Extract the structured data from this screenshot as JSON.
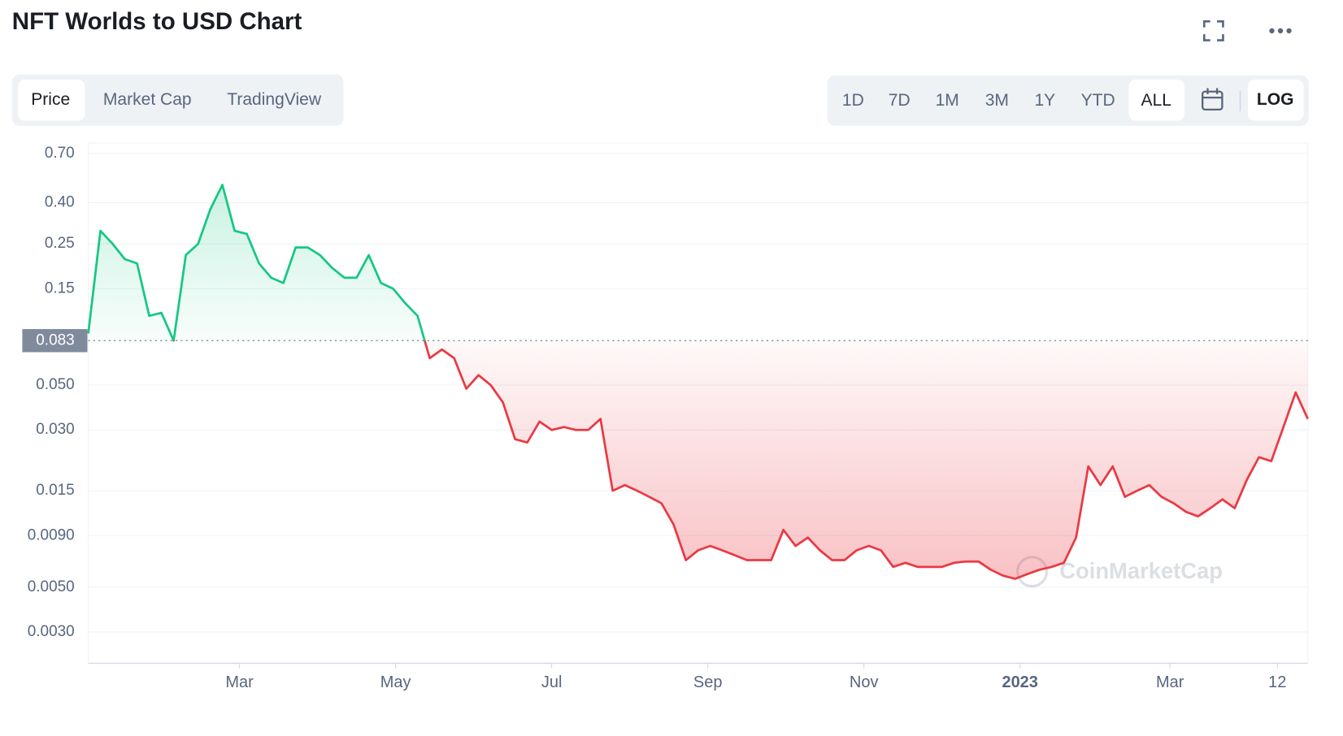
{
  "chart_data": {
    "type": "line",
    "title": "NFT Worlds to USD Chart",
    "log_scale": true,
    "grid": true,
    "baseline": 0.083,
    "color_above": "#16c784",
    "color_below": "#ea3943",
    "watermark": "CoinMarketCap",
    "ylim": [
      0.0021,
      0.79
    ],
    "yticks": [
      {
        "value": 0.7,
        "label": "0.70"
      },
      {
        "value": 0.4,
        "label": "0.40"
      },
      0.25,
      0.15,
      {
        "value": 0.05,
        "label": "0.050"
      },
      {
        "value": 0.03,
        "label": "0.030"
      },
      0.015,
      {
        "value": 0.009,
        "label": "0.0090"
      },
      {
        "value": 0.005,
        "label": "0.0050"
      },
      {
        "value": 0.003,
        "label": "0.0030"
      }
    ],
    "xlim": [
      0,
      100
    ],
    "xticks": [
      {
        "value": 12.4,
        "label": "Mar"
      },
      {
        "value": 25.2,
        "label": "May"
      },
      {
        "value": 38,
        "label": "Jul"
      },
      {
        "value": 50.8,
        "label": "Sep"
      },
      {
        "value": 63.6,
        "label": "Nov"
      },
      {
        "value": 76.4,
        "label": "2023",
        "bold": true
      },
      {
        "value": 88.7,
        "label": "Mar"
      },
      {
        "value": 97.5,
        "label": "12"
      }
    ],
    "series": [
      {
        "name": "Price",
        "values": [
          0.09,
          0.29,
          0.25,
          0.21,
          0.2,
          0.11,
          0.114,
          0.083,
          0.22,
          0.25,
          0.37,
          0.49,
          0.29,
          0.28,
          0.2,
          0.17,
          0.16,
          0.24,
          0.24,
          0.22,
          0.19,
          0.17,
          0.17,
          0.22,
          0.16,
          0.15,
          0.127,
          0.11,
          0.068,
          0.075,
          0.068,
          0.048,
          0.056,
          0.05,
          0.041,
          0.027,
          0.026,
          0.033,
          0.03,
          0.031,
          0.03,
          0.03,
          0.034,
          0.015,
          0.016,
          0.015,
          0.014,
          0.013,
          0.0102,
          0.0068,
          0.0076,
          0.008,
          0.0076,
          0.0072,
          0.0068,
          0.0068,
          0.0068,
          0.0096,
          0.008,
          0.0088,
          0.0076,
          0.0068,
          0.0068,
          0.0076,
          0.008,
          0.0076,
          0.0063,
          0.0066,
          0.0063,
          0.0063,
          0.0063,
          0.0066,
          0.0067,
          0.0067,
          0.0061,
          0.0057,
          0.0055,
          0.0058,
          0.0061,
          0.0063,
          0.0066,
          0.0088,
          0.0198,
          0.016,
          0.0198,
          0.014,
          0.015,
          0.016,
          0.014,
          0.013,
          0.0118,
          0.0112,
          0.0123,
          0.0136,
          0.0123,
          0.017,
          0.022,
          0.021,
          0.031,
          0.046,
          0.034
        ]
      }
    ]
  },
  "tabs": {
    "items": [
      "Price",
      "Market Cap",
      "TradingView"
    ],
    "selected": 0
  },
  "ranges": {
    "items": [
      "1D",
      "7D",
      "1M",
      "3M",
      "1Y",
      "YTD",
      "ALL"
    ],
    "selected": 6
  },
  "log_button": "LOG"
}
